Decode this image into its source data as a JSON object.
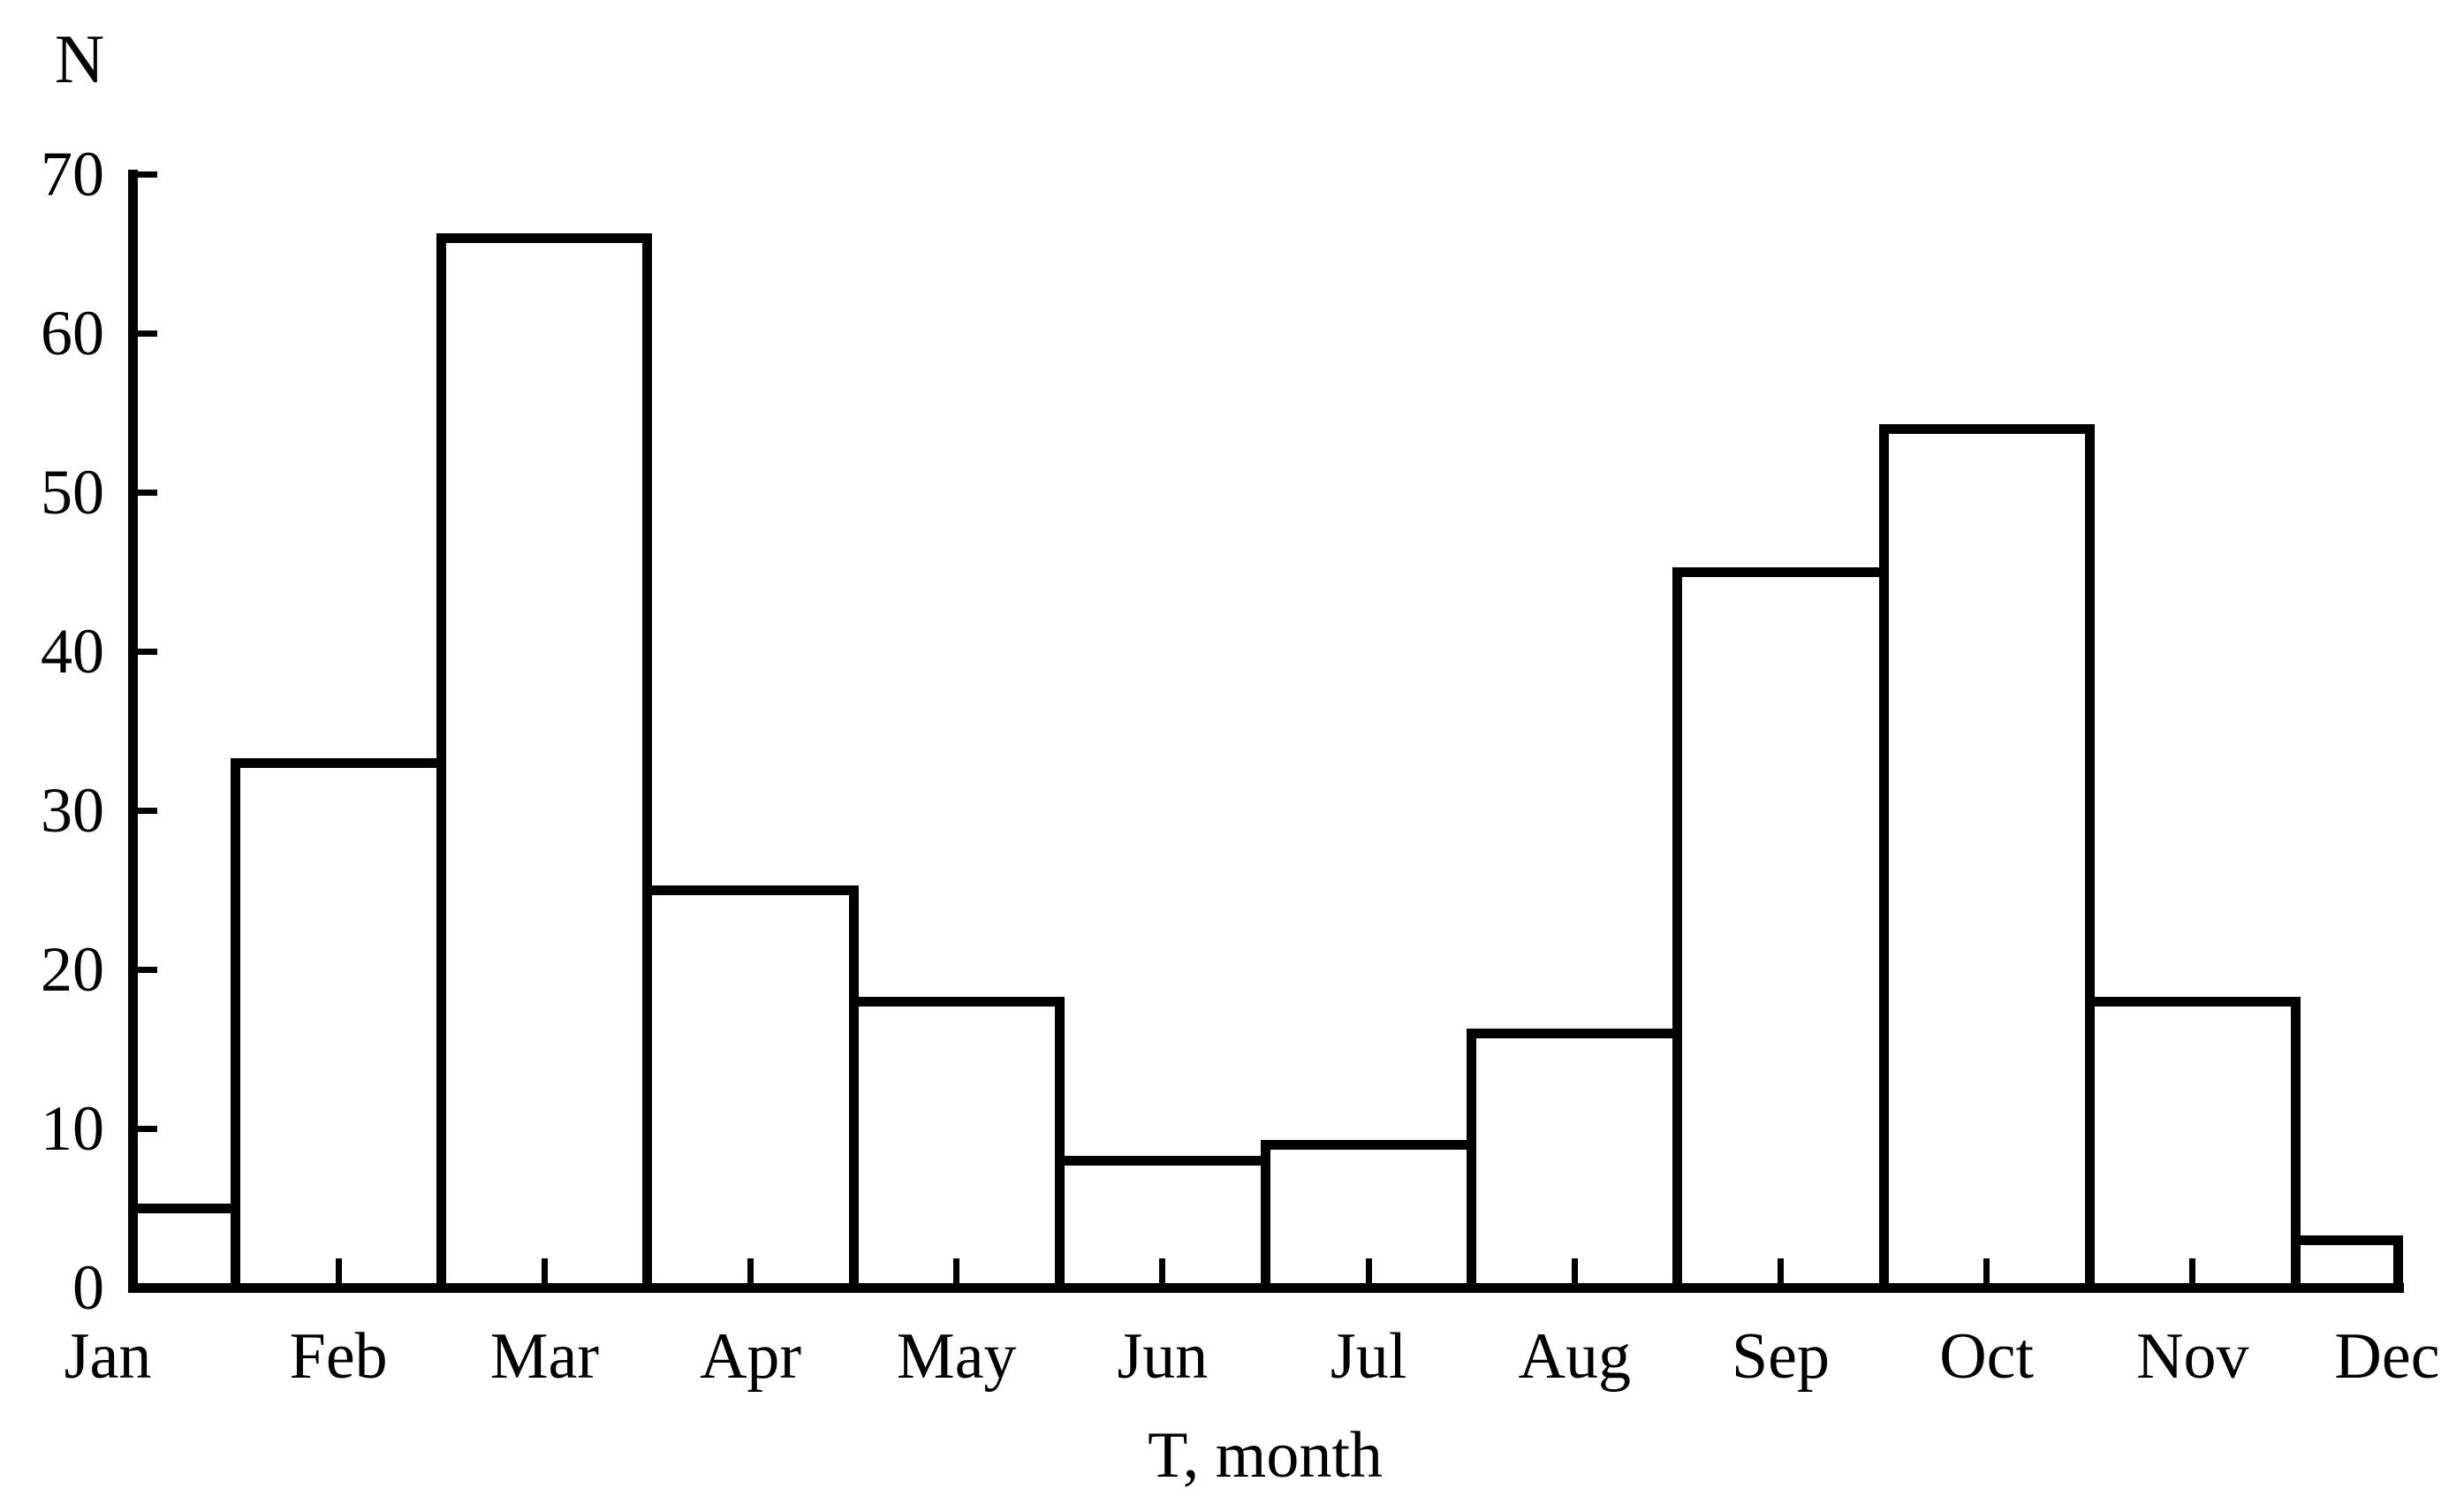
{
  "chart_data": {
    "type": "bar",
    "title": "",
    "categories": [
      "Jan",
      "Feb",
      "Mar",
      "Apr",
      "May",
      "Jun",
      "Jul",
      "Aug",
      "Sep",
      "Oct",
      "Nov",
      "Dec"
    ],
    "values": [
      5,
      33,
      66,
      25,
      18,
      8,
      9,
      16,
      45,
      54,
      18,
      3
    ],
    "xlabel": "T, month",
    "ylabel": "N",
    "ylim": [
      0,
      70
    ],
    "yticks": [
      0,
      10,
      20,
      30,
      40,
      50,
      60,
      70
    ],
    "grid": false,
    "legend": "none",
    "bar_fill": "#ffffff",
    "bar_stroke": "#000000",
    "axis_color": "#000000",
    "background": "#ffffff",
    "layout_hints": "contiguous histogram-style bars; first and last bars half-width, clipped at plot edges; ticks point inward"
  }
}
